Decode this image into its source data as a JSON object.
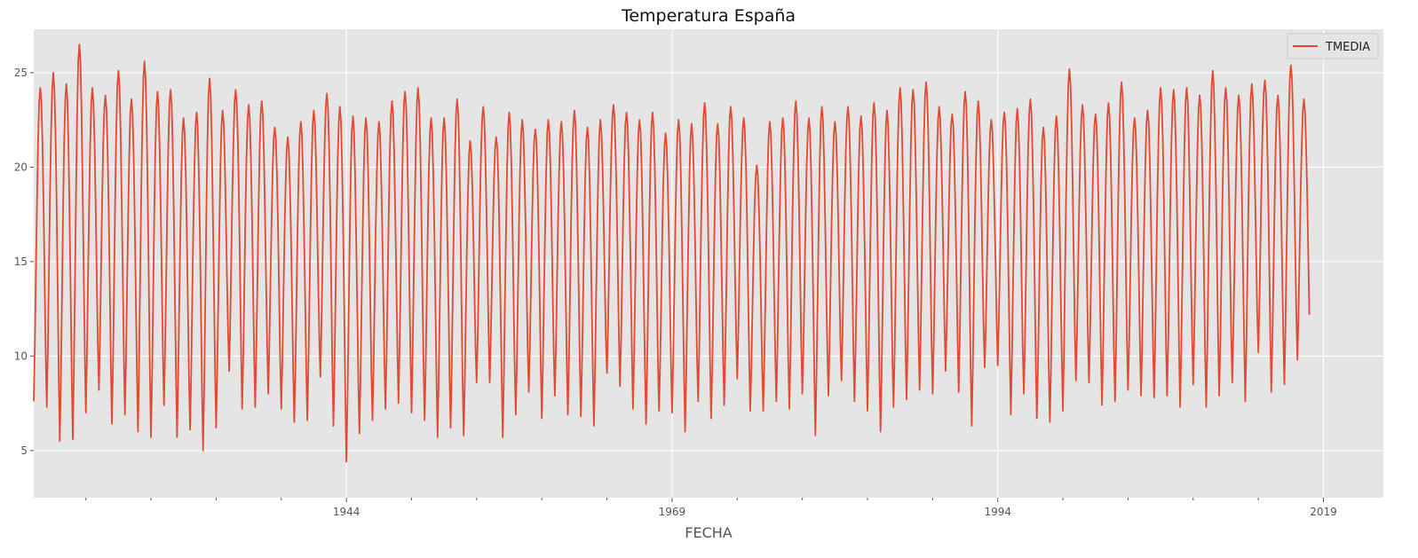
{
  "chart_data": {
    "type": "line",
    "title": "Temperatura España",
    "xlabel": "FECHA",
    "ylabel": "",
    "x_range": [
      1920,
      2023.6
    ],
    "ylim": [
      2.5,
      27.3
    ],
    "x_ticks": [
      1944,
      1969,
      1994,
      2019
    ],
    "x_tick_labels": [
      "1944",
      "1969",
      "1994",
      "2019"
    ],
    "y_ticks": [
      5,
      10,
      15,
      20,
      25
    ],
    "y_tick_labels": [
      "5",
      "10",
      "15",
      "20",
      "25"
    ],
    "grid": true,
    "legend_position": "top-right",
    "series": [
      {
        "name": "TMEDIA",
        "color": "#e24a33",
        "start_year": 1920,
        "samples_per_year": 12,
        "annual_peak": [
          24.2,
          25.0,
          24.4,
          26.5,
          24.2,
          23.8,
          25.1,
          23.6,
          25.6,
          24.0,
          24.1,
          22.6,
          22.9,
          24.7,
          23.0,
          24.1,
          23.3,
          23.5,
          22.1,
          21.6,
          22.4,
          23.0,
          23.9,
          23.2,
          22.7,
          22.6,
          22.4,
          23.5,
          24.0,
          24.2,
          22.6,
          22.6,
          23.6,
          21.4,
          23.2,
          21.6,
          22.9,
          22.5,
          22.0,
          22.5,
          22.4,
          23.0,
          22.1,
          22.5,
          23.3,
          22.9,
          22.5,
          22.9,
          21.8,
          22.5,
          22.3,
          23.4,
          22.3,
          23.2,
          22.6,
          20.1,
          22.4,
          22.6,
          23.5,
          22.6,
          23.2,
          22.4,
          23.2,
          22.7,
          23.4,
          23.0,
          24.2,
          24.1,
          24.5,
          23.2,
          22.8,
          24.0,
          23.5,
          22.5,
          22.9,
          23.1,
          23.6,
          22.1,
          22.7,
          25.2,
          23.3,
          22.8,
          23.4,
          24.5,
          22.6,
          23.0,
          24.2,
          24.1,
          24.2,
          23.8,
          25.1,
          24.2,
          23.8,
          24.4,
          24.6,
          23.8,
          25.4,
          23.6
        ],
        "annual_trough": [
          7.6,
          7.3,
          5.5,
          5.6,
          7.0,
          8.2,
          6.4,
          6.9,
          6.0,
          5.7,
          7.4,
          5.7,
          6.1,
          5.0,
          6.2,
          9.2,
          7.2,
          7.3,
          8.0,
          7.2,
          6.5,
          6.6,
          8.9,
          6.3,
          4.4,
          5.9,
          6.6,
          7.2,
          7.5,
          7.0,
          6.6,
          5.7,
          6.2,
          5.8,
          8.6,
          8.6,
          5.7,
          6.9,
          8.1,
          6.7,
          7.9,
          6.9,
          6.8,
          6.3,
          9.1,
          8.4,
          7.2,
          6.4,
          7.1,
          7.0,
          6.0,
          7.6,
          6.7,
          7.4,
          8.8,
          7.1,
          7.1,
          7.6,
          7.2,
          8.0,
          5.8,
          7.9,
          8.7,
          7.6,
          7.1,
          6.0,
          7.3,
          7.7,
          8.2,
          8.0,
          9.2,
          8.1,
          6.3,
          9.4,
          9.5,
          6.9,
          8.0,
          6.7,
          6.5,
          7.1,
          8.7,
          8.6,
          7.4,
          7.6,
          8.2,
          7.9,
          7.8,
          7.9,
          7.3,
          8.5,
          7.3,
          7.9,
          8.6,
          7.6,
          10.2,
          8.1,
          8.5,
          9.8
        ]
      }
    ]
  }
}
